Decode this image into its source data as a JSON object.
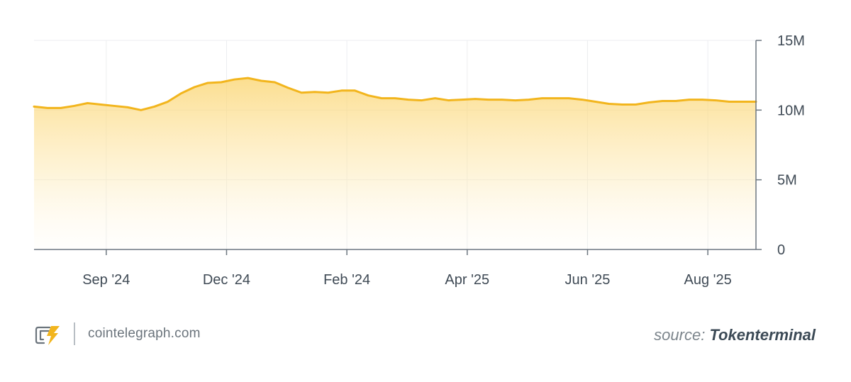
{
  "chart_data": {
    "type": "area",
    "title": "",
    "xlabel": "",
    "ylabel": "",
    "ylim": [
      0,
      15000000
    ],
    "y_ticks": [
      {
        "value": 0,
        "label": "0"
      },
      {
        "value": 5000000,
        "label": "5M"
      },
      {
        "value": 10000000,
        "label": "10M"
      },
      {
        "value": 15000000,
        "label": "15M"
      }
    ],
    "x_range": [
      0,
      54
    ],
    "x_ticks": [
      {
        "value": 5.4,
        "label": "Sep '24"
      },
      {
        "value": 14.4,
        "label": "Dec '24"
      },
      {
        "value": 23.4,
        "label": "Feb '24"
      },
      {
        "value": 32.4,
        "label": "Apr '25"
      },
      {
        "value": 41.4,
        "label": "Jun '25"
      },
      {
        "value": 50.4,
        "label": "Aug '25"
      }
    ],
    "grid": true,
    "y_axis_side": "right",
    "color": "#f2b51d",
    "series": [
      {
        "x": [
          0,
          1,
          2,
          3,
          4,
          5,
          6,
          7,
          8,
          9,
          10,
          11,
          12,
          13,
          14,
          15,
          16,
          17,
          18,
          19,
          20,
          21,
          22,
          23,
          24,
          25,
          26,
          27,
          28,
          29,
          30,
          31,
          32,
          33,
          34,
          35,
          36,
          37,
          38,
          39,
          40,
          41,
          42,
          43,
          44,
          45,
          46,
          47,
          48,
          49,
          50,
          51,
          52,
          53,
          54
        ],
        "values": [
          10250000,
          10150000,
          10150000,
          10300000,
          10500000,
          10400000,
          10300000,
          10200000,
          10000000,
          10250000,
          10600000,
          11200000,
          11650000,
          11950000,
          12000000,
          12200000,
          12300000,
          12100000,
          12000000,
          11600000,
          11250000,
          11300000,
          11250000,
          11400000,
          11400000,
          11050000,
          10850000,
          10850000,
          10750000,
          10700000,
          10850000,
          10700000,
          10750000,
          10800000,
          10750000,
          10750000,
          10700000,
          10750000,
          10850000,
          10850000,
          10850000,
          10750000,
          10600000,
          10450000,
          10400000,
          10400000,
          10550000,
          10650000,
          10650000,
          10750000,
          10750000,
          10700000,
          10600000,
          10600000,
          10600000
        ]
      }
    ]
  },
  "footer": {
    "site": "cointelegraph.com",
    "source_prefix": "source:",
    "source_name": "Tokenterminal"
  }
}
